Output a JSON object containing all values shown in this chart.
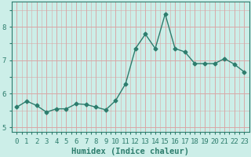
{
  "x": [
    0,
    1,
    2,
    3,
    4,
    5,
    6,
    7,
    8,
    9,
    10,
    11,
    12,
    13,
    14,
    15,
    16,
    17,
    18,
    19,
    20,
    21,
    22,
    23
  ],
  "y": [
    5.6,
    5.78,
    5.65,
    5.45,
    5.55,
    5.55,
    5.7,
    5.68,
    5.6,
    5.52,
    5.8,
    6.3,
    7.35,
    7.78,
    7.35,
    8.38,
    7.35,
    7.25,
    6.9,
    6.9,
    6.9,
    7.05,
    6.88,
    6.65
  ],
  "line_color": "#2d7d6d",
  "marker": "D",
  "markersize": 2.5,
  "linewidth": 1.0,
  "bg_color": "#cceee8",
  "grid_color": "#d8a8a8",
  "xlabel": "Humidex (Indice chaleur)",
  "xlabel_fontsize": 7.5,
  "xlim": [
    -0.5,
    23.5
  ],
  "ylim": [
    4.85,
    8.75
  ],
  "yticks": [
    5,
    6,
    7,
    8
  ],
  "xticks": [
    0,
    1,
    2,
    3,
    4,
    5,
    6,
    7,
    8,
    9,
    10,
    11,
    12,
    13,
    14,
    15,
    16,
    17,
    18,
    19,
    20,
    21,
    22,
    23
  ],
  "tick_fontsize": 6.5,
  "spine_color": "#2d7d6d",
  "tick_color": "#2d7d6d"
}
